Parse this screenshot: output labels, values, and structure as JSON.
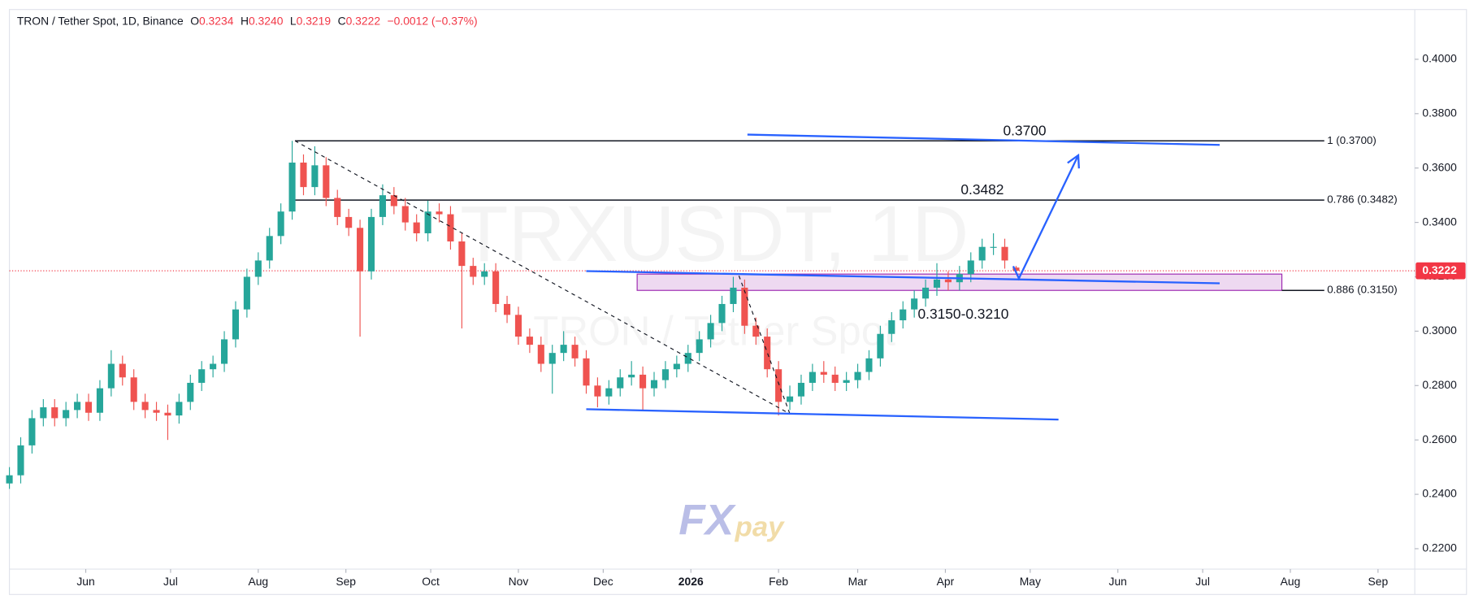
{
  "header": {
    "symbol": "TRON / Tether Spot, 1D, Binance",
    "open_label": "O",
    "open": "0.3234",
    "high_label": "H",
    "high": "0.3240",
    "low_label": "L",
    "low": "0.3219",
    "close_label": "C",
    "close": "0.3222",
    "change": "−0.0012 (−0.37%)"
  },
  "watermark": {
    "ticker": "TRXUSDT, 1D",
    "name": "TRON / Tether Spot"
  },
  "logo": {
    "fx": "FX",
    "pay": "pay"
  },
  "chart_data": {
    "type": "candlestick",
    "up_color": "#26a69a",
    "down_color": "#ef5350",
    "xlim": [
      4,
      501
    ],
    "ylim": [
      0.2125,
      0.4183
    ],
    "xticks": [
      {
        "value": 31,
        "label": "Jun"
      },
      {
        "value": 61,
        "label": "Jul"
      },
      {
        "value": 92,
        "label": "Aug"
      },
      {
        "value": 123,
        "label": "Sep"
      },
      {
        "value": 153,
        "label": "Oct"
      },
      {
        "value": 184,
        "label": "Nov"
      },
      {
        "value": 214,
        "label": "Dec"
      },
      {
        "value": 245,
        "label": "2026"
      },
      {
        "value": 276,
        "label": "Feb"
      },
      {
        "value": 304,
        "label": "Mar"
      },
      {
        "value": 335,
        "label": "Apr"
      },
      {
        "value": 365,
        "label": "May"
      },
      {
        "value": 396,
        "label": "Jun"
      },
      {
        "value": 426,
        "label": "Jul"
      },
      {
        "value": 457,
        "label": "Aug"
      },
      {
        "value": 488,
        "label": "Sep"
      }
    ],
    "yticks": [
      {
        "value": 0.22,
        "label": "0.2200"
      },
      {
        "value": 0.24,
        "label": "0.2400"
      },
      {
        "value": 0.26,
        "label": "0.2600"
      },
      {
        "value": 0.28,
        "label": "0.2800"
      },
      {
        "value": 0.3,
        "label": "0.3000"
      },
      {
        "value": 0.32,
        "label": "0.3200"
      },
      {
        "value": 0.34,
        "label": "0.3400"
      },
      {
        "value": 0.36,
        "label": "0.3600"
      },
      {
        "value": 0.38,
        "label": "0.3800"
      },
      {
        "value": 0.4,
        "label": "0.4000"
      }
    ],
    "x": [
      4,
      8,
      12,
      16,
      20,
      24,
      28,
      32,
      36,
      40,
      44,
      48,
      52,
      56,
      60,
      64,
      68,
      72,
      76,
      80,
      84,
      88,
      92,
      96,
      100,
      104,
      108,
      112,
      116,
      120,
      124,
      128,
      132,
      136,
      140,
      144,
      148,
      152,
      156,
      160,
      164,
      168,
      172,
      176,
      180,
      184,
      188,
      192,
      196,
      200,
      204,
      208,
      212,
      216,
      220,
      224,
      228,
      232,
      236,
      240,
      244,
      248,
      252,
      256,
      260,
      264,
      268,
      272,
      276,
      280,
      284,
      288,
      292,
      296,
      300,
      304,
      308,
      312,
      316,
      320,
      324,
      328,
      332,
      336,
      340,
      344,
      348,
      352,
      356,
      360
    ],
    "open": [
      0.244,
      0.247,
      0.258,
      0.268,
      0.272,
      0.268,
      0.271,
      0.274,
      0.27,
      0.279,
      0.288,
      0.283,
      0.274,
      0.271,
      0.27,
      0.269,
      0.274,
      0.281,
      0.286,
      0.288,
      0.297,
      0.308,
      0.32,
      0.326,
      0.335,
      0.344,
      0.362,
      0.353,
      0.361,
      0.349,
      0.342,
      0.338,
      0.322,
      0.342,
      0.35,
      0.346,
      0.34,
      0.336,
      0.344,
      0.343,
      0.333,
      0.324,
      0.32,
      0.322,
      0.31,
      0.306,
      0.298,
      0.295,
      0.288,
      0.292,
      0.295,
      0.29,
      0.28,
      0.276,
      0.279,
      0.283,
      0.284,
      0.279,
      0.282,
      0.286,
      0.288,
      0.292,
      0.297,
      0.303,
      0.31,
      0.316,
      0.302,
      0.298,
      0.286,
      0.274,
      0.276,
      0.281,
      0.285,
      0.284,
      0.281,
      0.282,
      0.285,
      0.29,
      0.299,
      0.304,
      0.308,
      0.312,
      0.316,
      0.319,
      0.318,
      0.321,
      0.326,
      0.331,
      0.331,
      0.3234
    ],
    "high": [
      0.25,
      0.261,
      0.271,
      0.275,
      0.275,
      0.274,
      0.277,
      0.277,
      0.282,
      0.293,
      0.291,
      0.286,
      0.277,
      0.274,
      0.273,
      0.277,
      0.284,
      0.289,
      0.291,
      0.3,
      0.311,
      0.323,
      0.329,
      0.338,
      0.347,
      0.37,
      0.365,
      0.368,
      0.364,
      0.352,
      0.345,
      0.341,
      0.345,
      0.354,
      0.353,
      0.349,
      0.343,
      0.348,
      0.347,
      0.346,
      0.336,
      0.327,
      0.325,
      0.325,
      0.313,
      0.309,
      0.301,
      0.298,
      0.295,
      0.3,
      0.298,
      0.293,
      0.283,
      0.282,
      0.286,
      0.289,
      0.287,
      0.285,
      0.289,
      0.291,
      0.295,
      0.3,
      0.306,
      0.313,
      0.32,
      0.319,
      0.305,
      0.301,
      0.289,
      0.28,
      0.284,
      0.288,
      0.289,
      0.287,
      0.285,
      0.288,
      0.293,
      0.302,
      0.307,
      0.311,
      0.315,
      0.319,
      0.325,
      0.322,
      0.324,
      0.329,
      0.334,
      0.336,
      0.334,
      0.324
    ],
    "low": [
      0.242,
      0.244,
      0.255,
      0.265,
      0.265,
      0.265,
      0.268,
      0.267,
      0.267,
      0.276,
      0.28,
      0.271,
      0.268,
      0.267,
      0.26,
      0.266,
      0.271,
      0.278,
      0.283,
      0.285,
      0.294,
      0.305,
      0.317,
      0.323,
      0.332,
      0.341,
      0.35,
      0.35,
      0.346,
      0.339,
      0.335,
      0.298,
      0.319,
      0.339,
      0.343,
      0.337,
      0.333,
      0.333,
      0.34,
      0.33,
      0.301,
      0.317,
      0.317,
      0.307,
      0.303,
      0.295,
      0.292,
      0.285,
      0.277,
      0.289,
      0.287,
      0.277,
      0.272,
      0.273,
      0.276,
      0.28,
      0.271,
      0.276,
      0.279,
      0.283,
      0.285,
      0.289,
      0.294,
      0.3,
      0.307,
      0.299,
      0.295,
      0.283,
      0.269,
      0.271,
      0.273,
      0.278,
      0.281,
      0.278,
      0.278,
      0.279,
      0.282,
      0.287,
      0.296,
      0.301,
      0.305,
      0.309,
      0.313,
      0.315,
      0.315,
      0.318,
      0.323,
      0.328,
      0.323,
      0.3219
    ],
    "close": [
      0.247,
      0.258,
      0.268,
      0.272,
      0.268,
      0.271,
      0.274,
      0.27,
      0.279,
      0.288,
      0.283,
      0.274,
      0.271,
      0.27,
      0.269,
      0.274,
      0.281,
      0.286,
      0.288,
      0.297,
      0.308,
      0.32,
      0.326,
      0.335,
      0.344,
      0.362,
      0.353,
      0.361,
      0.349,
      0.342,
      0.338,
      0.322,
      0.342,
      0.35,
      0.346,
      0.34,
      0.336,
      0.344,
      0.343,
      0.333,
      0.324,
      0.32,
      0.322,
      0.31,
      0.306,
      0.298,
      0.295,
      0.288,
      0.292,
      0.295,
      0.29,
      0.28,
      0.276,
      0.279,
      0.283,
      0.284,
      0.279,
      0.282,
      0.286,
      0.288,
      0.292,
      0.297,
      0.303,
      0.31,
      0.316,
      0.302,
      0.298,
      0.286,
      0.274,
      0.276,
      0.281,
      0.285,
      0.284,
      0.281,
      0.282,
      0.285,
      0.29,
      0.299,
      0.304,
      0.308,
      0.312,
      0.316,
      0.319,
      0.318,
      0.321,
      0.326,
      0.331,
      0.331,
      0.326,
      0.3222
    ],
    "price_color": "#f23645",
    "fib_levels": [
      {
        "value": 0.37,
        "label": "1 (0.3700)",
        "start": 105,
        "end": 469,
        "annotation": "0.3700"
      },
      {
        "value": 0.3482,
        "label": "0.786 (0.3482)",
        "start": 105,
        "end": 469,
        "annotation": "0.3482"
      },
      {
        "value": 0.315,
        "label": "0.886 (0.3150)",
        "start": 454,
        "end": 469
      }
    ],
    "zone": {
      "low": 0.315,
      "high": 0.321,
      "start": 226,
      "end": 454,
      "label": "0.3150-0.3210"
    },
    "drawing_color": "#2962ff",
    "trendlines": [
      [
        [
          208,
          0.3221
        ],
        [
          432,
          0.3176
        ]
      ],
      [
        [
          208,
          0.2713
        ],
        [
          375,
          0.2675
        ]
      ],
      [
        [
          265,
          0.3723
        ],
        [
          432,
          0.3685
        ]
      ]
    ],
    "dashed": [
      [
        [
          105,
          0.37
        ],
        [
          280,
          0.2696
        ]
      ],
      [
        [
          262,
          0.3204
        ],
        [
          280,
          0.2696
        ]
      ]
    ],
    "arrow": [
      [
        359,
        0.3239
      ],
      [
        361,
        0.3194
      ],
      [
        382,
        0.3647
      ]
    ]
  }
}
